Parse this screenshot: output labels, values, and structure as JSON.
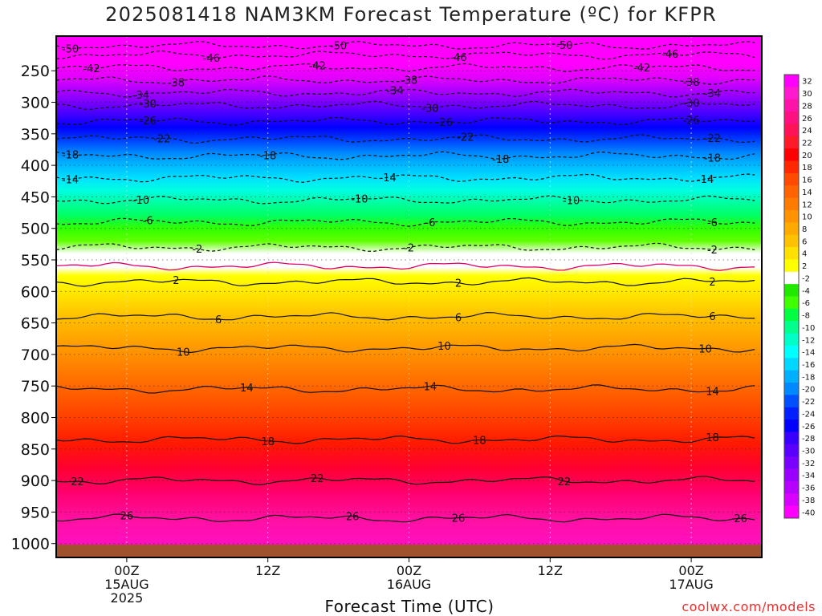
{
  "title": "2025081418 NAM3KM Forecast Temperature (ºC) for KFPR",
  "credit": "coolwx.com/models",
  "chart_data": {
    "type": "heatmap",
    "title": "2025081418 NAM3KM Forecast Temperature (ºC) for KFPR",
    "xlabel": "Forecast Time (UTC)",
    "ylabel": "",
    "y_ticks": [
      250,
      300,
      350,
      400,
      450,
      500,
      550,
      600,
      650,
      700,
      750,
      800,
      850,
      900,
      950,
      1000
    ],
    "x_ticks": [
      {
        "hour": 6,
        "lines": [
          "00Z",
          "15AUG",
          "2025"
        ]
      },
      {
        "hour": 18,
        "lines": [
          "12Z"
        ]
      },
      {
        "hour": 30,
        "lines": [
          "00Z",
          "16AUG"
        ]
      },
      {
        "hour": 42,
        "lines": [
          "12Z"
        ]
      },
      {
        "hour": 54,
        "lines": [
          "00Z",
          "17AUG"
        ]
      }
    ],
    "xlim_hours": [
      0,
      60
    ],
    "colorbar": {
      "labels": [
        "32",
        "30",
        "28",
        "26",
        "24",
        "22",
        "20",
        "18",
        "16",
        "14",
        "12",
        "10",
        "8",
        "6",
        "4",
        "2",
        "-2",
        "-4",
        "-6",
        "-8",
        "-10",
        "-12",
        "-14",
        "-16",
        "-18",
        "-20",
        "-22",
        "-24",
        "-26",
        "-28",
        "-30",
        "-32",
        "-34",
        "-36",
        "-38",
        "-40"
      ],
      "colors": [
        "#ff00ff",
        "#ff1acd",
        "#ff12a8",
        "#ff1080",
        "#ff1258",
        "#ff1a2a",
        "#ff0000",
        "#ff2800",
        "#ff4a00",
        "#ff6400",
        "#ff7a00",
        "#ff9200",
        "#ffaa00",
        "#ffc200",
        "#ffe000",
        "#ffff00",
        "#ffffff",
        "#20e800",
        "#40ff00",
        "#00ff40",
        "#00ff8c",
        "#00ffc8",
        "#00ffff",
        "#00d8ff",
        "#00b0ff",
        "#0088ff",
        "#0050ff",
        "#0020ff",
        "#0000ff",
        "#3a00ff",
        "#5a00ff",
        "#7a00ff",
        "#9a00ff",
        "#b800ff",
        "#d800ff",
        "#ff00ff"
      ]
    },
    "isotherms_dashed": [
      {
        "label": "-50",
        "p": 210,
        "label_hours": [
          1,
          24,
          43
        ]
      },
      {
        "label": "-46",
        "p": 225,
        "label_hours": [
          13,
          34,
          52
        ]
      },
      {
        "label": "-42",
        "p": 245,
        "label_hours": [
          3,
          22,
          50
        ]
      },
      {
        "label": "-38",
        "p": 265,
        "label_hours": [
          10,
          30,
          54
        ]
      },
      {
        "label": "-34",
        "p": 285,
        "label_hours": [
          7,
          29,
          56
        ]
      },
      {
        "label": "-30",
        "p": 305,
        "label_hours": [
          8,
          32,
          54
        ]
      },
      {
        "label": "-26",
        "p": 330,
        "label_hours": [
          8,
          33,
          54
        ]
      },
      {
        "label": "-22",
        "p": 358,
        "label_hours": [
          9,
          35,
          56
        ]
      },
      {
        "label": "-18",
        "p": 385,
        "label_hours": [
          1,
          18,
          38,
          56
        ]
      },
      {
        "label": "-14",
        "p": 420,
        "label_hours": [
          1,
          28,
          55
        ]
      },
      {
        "label": "-10",
        "p": 455,
        "label_hours": [
          7,
          26,
          44
        ]
      },
      {
        "label": "-6",
        "p": 490,
        "label_hours": [
          8,
          32,
          56
        ]
      },
      {
        "label": "-2",
        "p": 530,
        "label_hours": [
          12,
          30,
          56
        ]
      }
    ],
    "freezing_level_p": 560,
    "isotherms_solid": [
      {
        "label": "2",
        "p": 585,
        "label_hours": [
          10,
          34,
          56
        ]
      },
      {
        "label": "6",
        "p": 640,
        "label_hours": [
          14,
          34,
          56
        ]
      },
      {
        "label": "10",
        "p": 690,
        "label_hours": [
          11,
          33,
          55
        ]
      },
      {
        "label": "14",
        "p": 755,
        "label_hours": [
          16,
          32,
          56
        ]
      },
      {
        "label": "18",
        "p": 835,
        "label_hours": [
          18,
          36,
          56
        ]
      },
      {
        "label": "22",
        "p": 900,
        "label_hours": [
          2,
          22,
          43
        ]
      },
      {
        "label": "26",
        "p": 960,
        "label_hours": [
          6,
          25,
          34,
          58
        ]
      }
    ],
    "surface_p": 1010,
    "grid": true,
    "legend": "right colorbar"
  },
  "x_axis": {
    "label": "Forecast Time (UTC)"
  }
}
